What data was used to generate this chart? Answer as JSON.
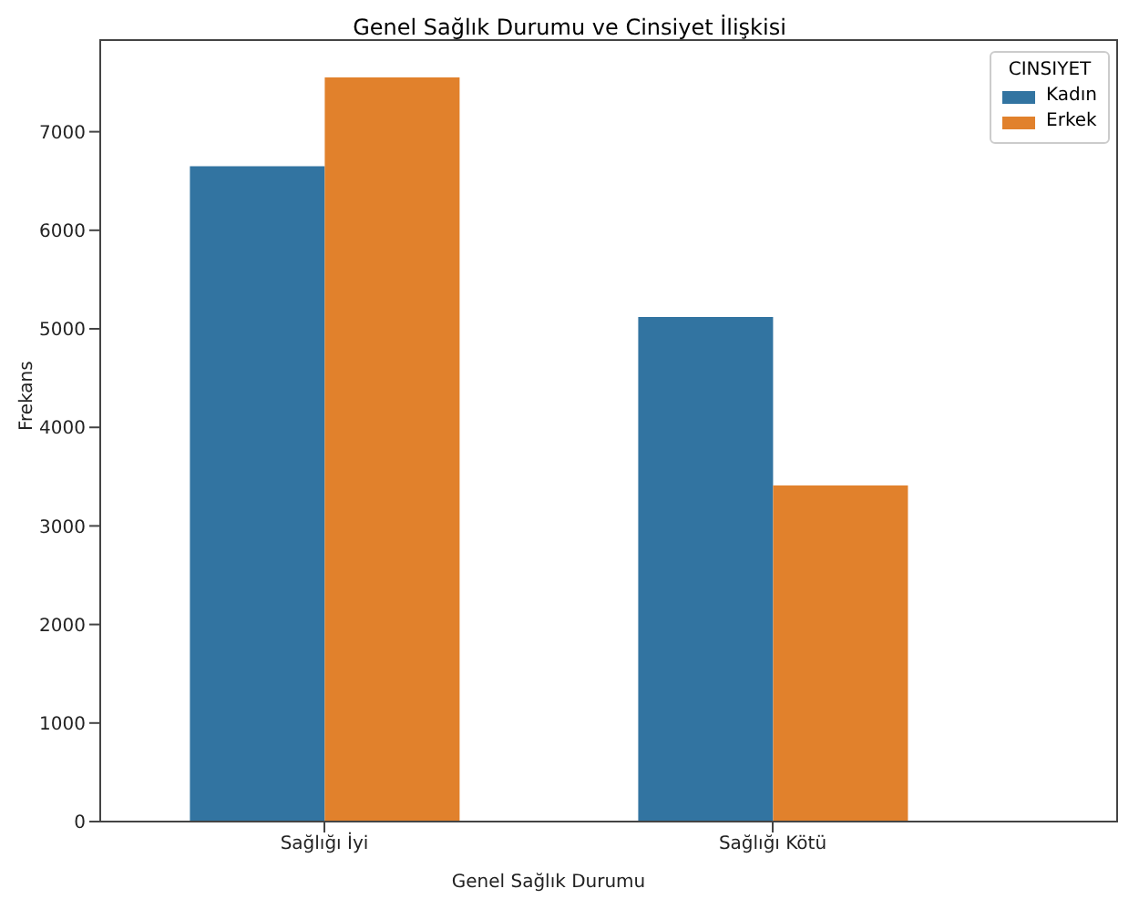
{
  "chart_data": {
    "type": "bar",
    "title": "Genel Sağlık Durumu ve Cinsiyet İlişkisi",
    "xlabel": "Genel Sağlık Durumu",
    "ylabel": "Frekans",
    "legend_title": "CINSIYET",
    "categories": [
      "Sağlığı İyi",
      "Sağlığı Kötü"
    ],
    "series": [
      {
        "name": "Kadın",
        "color": "#3274a1",
        "values": [
          6650,
          5120
        ]
      },
      {
        "name": "Erkek",
        "color": "#e1812c",
        "values": [
          7550,
          3410
        ]
      }
    ],
    "ylim": [
      0,
      7930
    ],
    "yticks": [
      0,
      1000,
      2000,
      3000,
      4000,
      5000,
      6000,
      7000
    ],
    "grid": false,
    "legend": "top right"
  }
}
